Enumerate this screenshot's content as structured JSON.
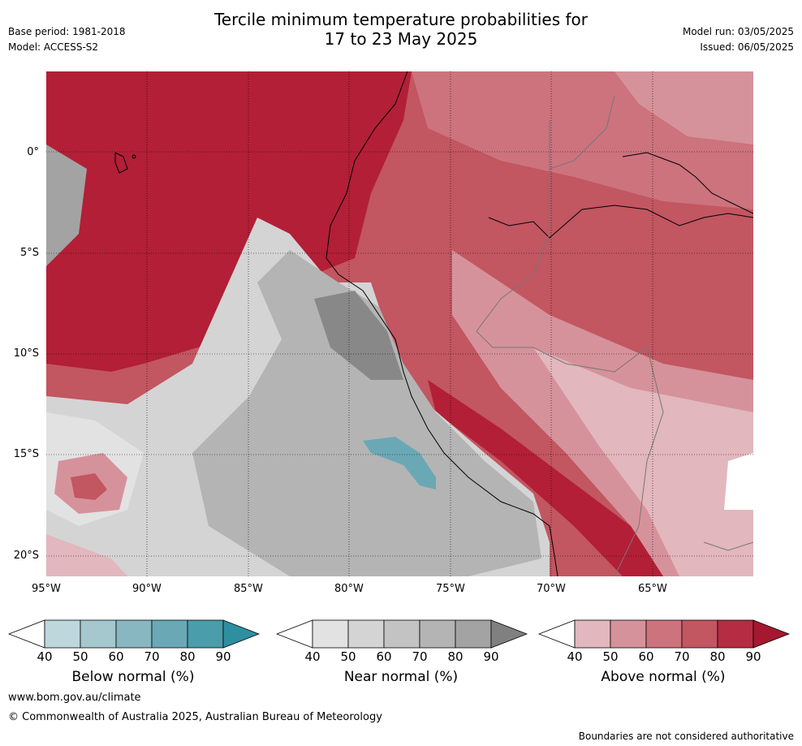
{
  "header": {
    "title_line1": "Tercile minimum temperature probabilities for",
    "title_line2": "17 to 23 May 2025",
    "base_period": "Base period: 1981-2018",
    "model": "Model: ACCESS-S2",
    "model_run": "Model run: 03/05/2025",
    "issued": "Issued: 06/05/2025"
  },
  "map": {
    "lat_labels": [
      "0°",
      "5°S",
      "10°S",
      "15°S",
      "20°S"
    ],
    "lon_labels": [
      "95°W",
      "90°W",
      "85°W",
      "80°W",
      "75°W",
      "70°W",
      "65°W"
    ]
  },
  "colorbars": [
    {
      "label": "Below normal (%)",
      "ticks": [
        "40",
        "50",
        "60",
        "70",
        "80",
        "90"
      ],
      "colors": [
        "#ffffff",
        "#bdd7dd",
        "#a5c8cf",
        "#88b7c2",
        "#6aa8b5",
        "#4a9dab",
        "#2e8fa0"
      ]
    },
    {
      "label": "Near normal (%)",
      "ticks": [
        "40",
        "50",
        "60",
        "70",
        "80",
        "90"
      ],
      "colors": [
        "#ffffff",
        "#e2e2e2",
        "#d4d4d4",
        "#c3c3c3",
        "#b4b4b4",
        "#a3a3a3",
        "#808080"
      ]
    },
    {
      "label": "Above normal (%)",
      "ticks": [
        "40",
        "50",
        "60",
        "70",
        "80",
        "90"
      ],
      "colors": [
        "#ffffff",
        "#e2b7bd",
        "#d6929b",
        "#cc737e",
        "#c25661",
        "#b62c42",
        "#a6182f"
      ]
    }
  ],
  "footer": {
    "url": "www.bom.gov.au/climate",
    "copyright": "© Commonwealth of Australia 2025, Australian Bureau of Meteorology",
    "disclaimer": "Boundaries are not considered authoritative"
  }
}
